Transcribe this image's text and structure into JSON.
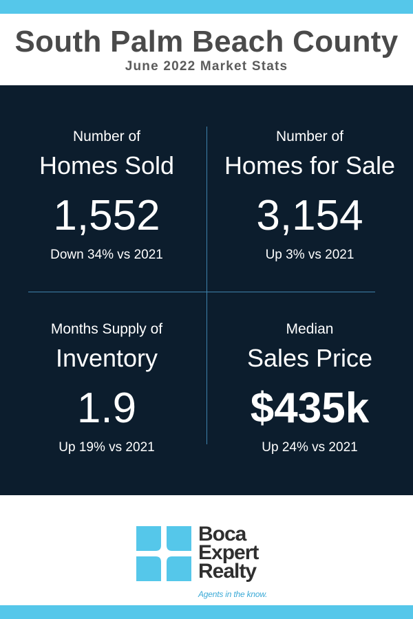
{
  "header": {
    "title": "South Palm Beach County",
    "subtitle": "June 2022 Market Stats"
  },
  "stats": [
    {
      "label_small": "Number of",
      "label_big": "Homes Sold",
      "value": "1,552",
      "change": "Down 34% vs 2021"
    },
    {
      "label_small": "Number of",
      "label_big": "Homes for Sale",
      "value": "3,154",
      "change": "Up 3% vs 2021"
    },
    {
      "label_small": "Months Supply of",
      "label_big": "Inventory",
      "value": "1.9",
      "change": "Up 19% vs 2021"
    },
    {
      "label_small": "Median",
      "label_big": "Sales Price",
      "value": "$435k",
      "change": "Up 24% vs 2021"
    }
  ],
  "logo": {
    "line1": "Boca",
    "line2": "Expert",
    "line3": "Realty",
    "tagline": "Agents in the know."
  },
  "colors": {
    "accent": "#55c7ea",
    "panel": "#0c1d2d",
    "divider": "#3f83ad",
    "title": "#4a4a4a"
  }
}
